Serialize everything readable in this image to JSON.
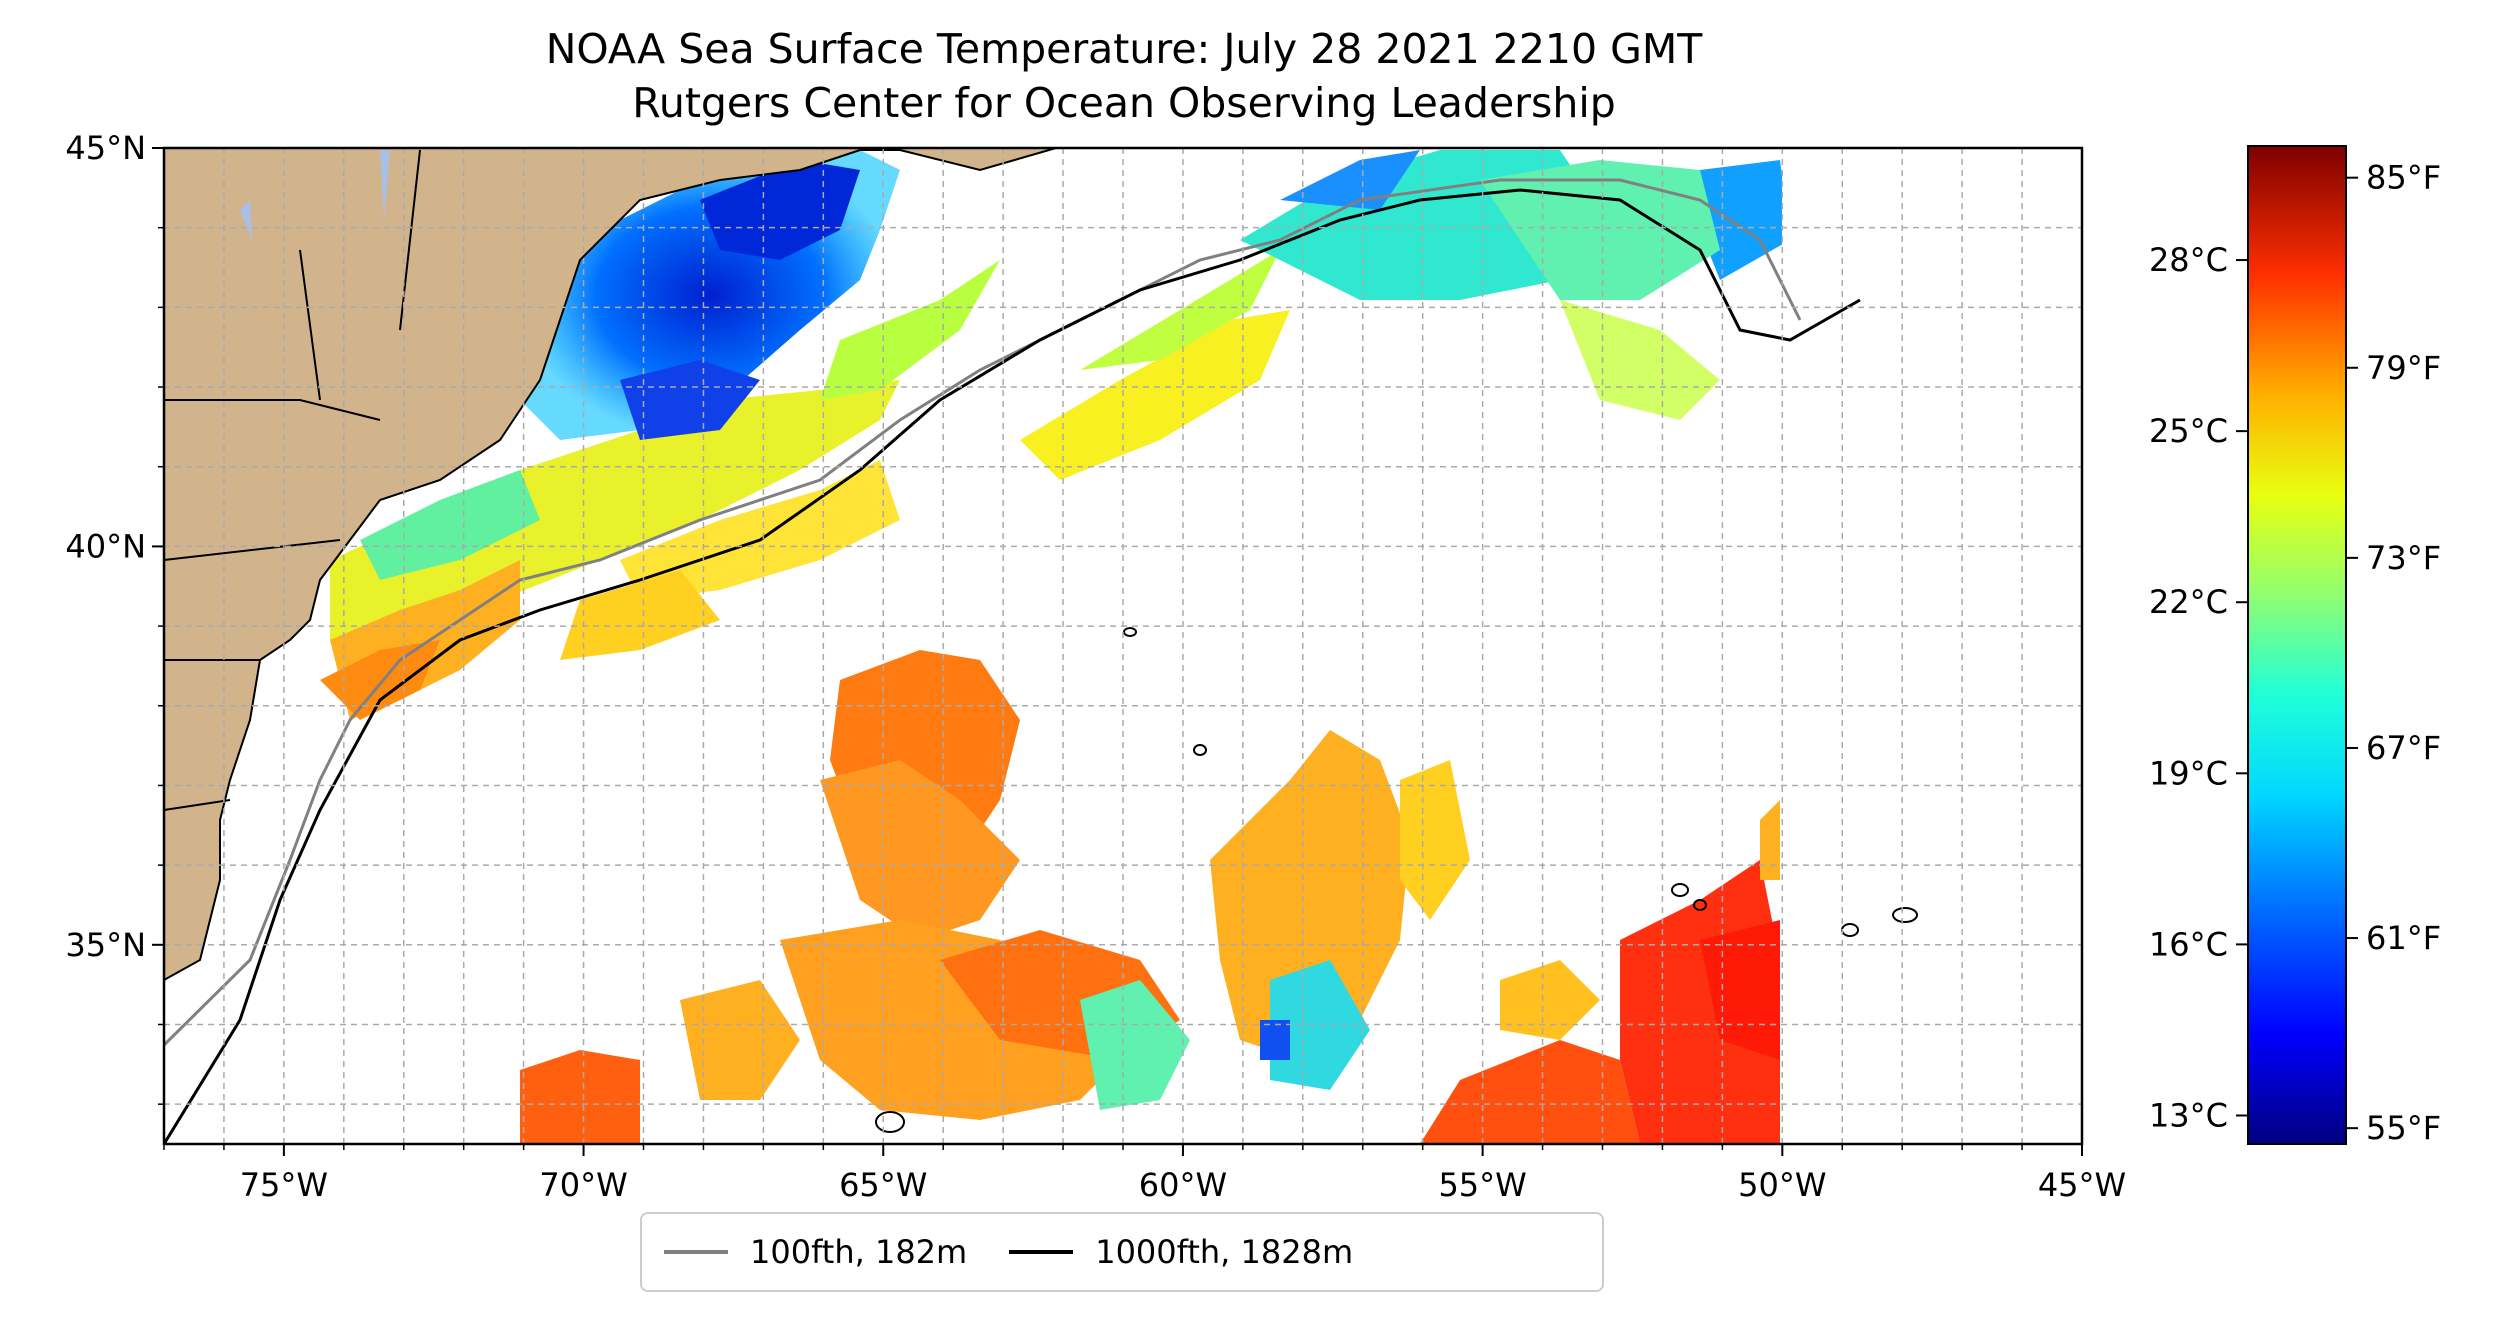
{
  "title": {
    "line1": "NOAA Sea Surface Temperature: July 28 2021 2210 GMT",
    "line2": "Rutgers Center for Ocean Observing Leadership"
  },
  "map": {
    "lon_range": [
      -77,
      -45
    ],
    "lat_range": [
      32.5,
      45
    ],
    "lon_labels": [
      {
        "lon": -75,
        "label": "75°W"
      },
      {
        "lon": -70,
        "label": "70°W"
      },
      {
        "lon": -65,
        "label": "65°W"
      },
      {
        "lon": -60,
        "label": "60°W"
      },
      {
        "lon": -55,
        "label": "55°W"
      },
      {
        "lon": -50,
        "label": "50°W"
      },
      {
        "lon": -45,
        "label": "45°W"
      }
    ],
    "lat_labels": [
      {
        "lat": 45,
        "label": "45°N"
      },
      {
        "lat": 40,
        "label": "40°N"
      },
      {
        "lat": 35,
        "label": "35°N"
      }
    ],
    "gridlines": true,
    "land_color": "#d2b48c",
    "no_data_color": "#ffffff"
  },
  "colorbar": {
    "colormap": "jet",
    "celsius_range": [
      12.5,
      30
    ],
    "celsius_ticks": [
      {
        "value": 13,
        "label": "13°C"
      },
      {
        "value": 16,
        "label": "16°C"
      },
      {
        "value": 19,
        "label": "19°C"
      },
      {
        "value": 22,
        "label": "22°C"
      },
      {
        "value": 25,
        "label": "25°C"
      },
      {
        "value": 28,
        "label": "28°C"
      }
    ],
    "fahrenheit_ticks": [
      {
        "value": 55,
        "label": "55°F"
      },
      {
        "value": 61,
        "label": "61°F"
      },
      {
        "value": 67,
        "label": "67°F"
      },
      {
        "value": 73,
        "label": "73°F"
      },
      {
        "value": 79,
        "label": "79°F"
      },
      {
        "value": 85,
        "label": "85°F"
      }
    ]
  },
  "legend": {
    "items": [
      {
        "label": "100fth, 182m",
        "color": "#808080"
      },
      {
        "label": "1000fth, 1828m",
        "color": "#000000"
      }
    ],
    "placement": "bottom-center"
  }
}
